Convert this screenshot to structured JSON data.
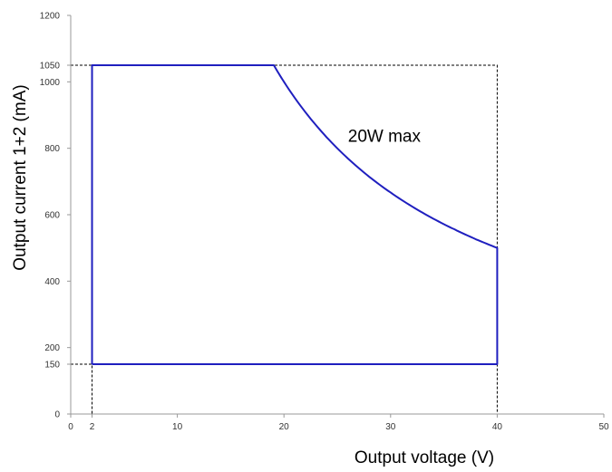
{
  "chart_data": {
    "type": "line",
    "xlabel": "Output voltage (V)",
    "ylabel": "Output current 1+2 (mA)",
    "xlim": [
      0,
      50
    ],
    "ylim": [
      0,
      1200
    ],
    "x_ticks": [
      "0",
      "2",
      "10",
      "20",
      "30",
      "40",
      "50"
    ],
    "y_ticks": [
      "0",
      "150",
      "200",
      "400",
      "600",
      "800",
      "1000",
      "1050",
      "1200"
    ],
    "grid": false,
    "legend": "none",
    "colors": {
      "line": "#1f1fbf",
      "axis": "#999999",
      "reference": "#000000"
    },
    "annotations": [
      {
        "text": "20W max",
        "x": 26,
        "y": 820
      }
    ],
    "series": [
      {
        "x": [
          2,
          2,
          19.05,
          20,
          22,
          24,
          26,
          28,
          30,
          32,
          34,
          36,
          38,
          40,
          40,
          2
        ],
        "y": [
          150,
          1050,
          1050,
          1000,
          909,
          833,
          769,
          714,
          667,
          625,
          588,
          556,
          526,
          500,
          150,
          150
        ]
      }
    ],
    "reference_lines": [
      {
        "points": [
          [
            0,
            1050
          ],
          [
            40,
            1050
          ],
          [
            40,
            0
          ]
        ]
      },
      {
        "points": [
          [
            0,
            150
          ],
          [
            2,
            150
          ],
          [
            2,
            0
          ]
        ]
      }
    ]
  }
}
